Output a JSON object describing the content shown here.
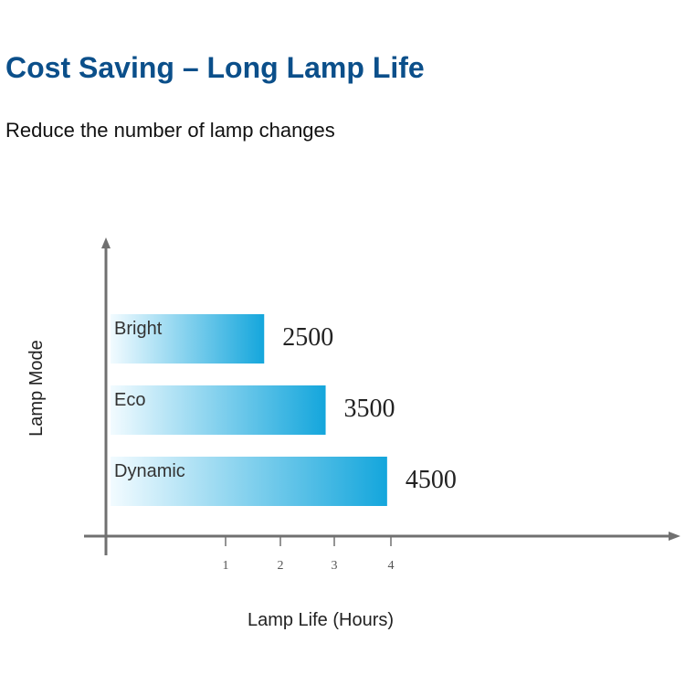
{
  "header": {
    "title": "Cost Saving – Long Lamp Life",
    "subtitle": "Reduce the number of lamp changes"
  },
  "chart_data": {
    "type": "bar",
    "orientation": "horizontal",
    "categories": [
      "Bright",
      "Eco",
      "Dynamic"
    ],
    "values": [
      2500,
      3500,
      4500
    ],
    "value_labels": [
      "2500",
      "3500",
      "4500"
    ],
    "x_ticks": [
      "1",
      "2",
      "3",
      "4"
    ],
    "xlabel": "Lamp Life (Hours)",
    "ylabel": "Lamp Mode",
    "grid": false,
    "legend": "none",
    "colors": {
      "bar_start": "#f2fbff",
      "bar_end": "#14a6dc",
      "axis": "#707070",
      "title": "#0b4f8a"
    }
  }
}
